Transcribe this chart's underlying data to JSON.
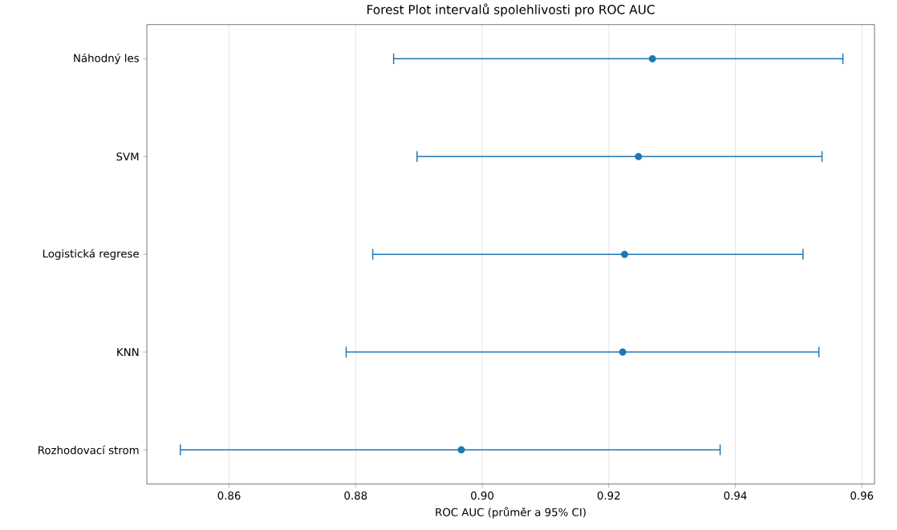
{
  "chart_data": {
    "type": "scatter",
    "title": "Forest Plot intervalů spolehlivosti pro ROC AUC",
    "xlabel": "ROC AUC (průměr a 95% CI)",
    "orientation": "horizontal",
    "categories": [
      "Náhodný les",
      "SVM",
      "Logistická regrese",
      "KNN",
      "Rozhodovací strom"
    ],
    "series": [
      {
        "color": "#1f77b4",
        "values": [
          0.9269,
          0.9247,
          0.9225,
          0.9222,
          0.8967
        ],
        "errors": [
          [
            0.886,
            0.957
          ],
          [
            0.8897,
            0.9537
          ],
          [
            0.8827,
            0.9507
          ],
          [
            0.8785,
            0.9532
          ],
          [
            0.8523,
            0.9376
          ]
        ]
      }
    ],
    "xlim": [
      0.847,
      0.962
    ],
    "xticks": [
      0.86,
      0.88,
      {
        "value": 0.9,
        "label": "0.90"
      },
      0.92,
      0.94,
      0.96
    ],
    "grid": "x",
    "marker": "circle"
  }
}
